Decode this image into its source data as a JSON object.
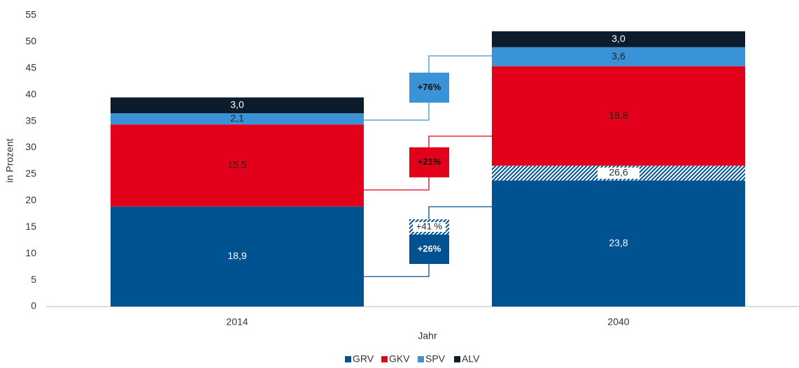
{
  "chart_data": {
    "type": "stacked_bar",
    "y_label": "in Prozent",
    "x_label": "Jahr",
    "categories": [
      "2014",
      "2040"
    ],
    "ylim": [
      0,
      55
    ],
    "yticks": [
      0,
      5,
      10,
      15,
      20,
      25,
      30,
      35,
      40,
      45,
      50,
      55
    ],
    "series": [
      {
        "name": "GRV",
        "color": "#005291",
        "label_color": "#ffffff",
        "values": [
          18.9,
          23.8
        ],
        "value_labels": [
          "18,9",
          "23,8"
        ]
      },
      {
        "pattern": "hatched",
        "color": "#005291",
        "values": [
          null,
          2.8
        ],
        "label": {
          "text": "26,6",
          "value": 26.6
        }
      },
      {
        "name": "GKV",
        "color": "#e2001a",
        "label_color": "#222222",
        "values": [
          15.5,
          18.8
        ],
        "value_labels": [
          "15,5",
          "18,8"
        ]
      },
      {
        "name": "SPV",
        "color": "#3a93d6",
        "label_color": "#222222",
        "values": [
          2.1,
          3.6
        ],
        "value_labels": [
          "2,1",
          "3,6"
        ]
      },
      {
        "name": "ALV",
        "color": "#0c1c2c",
        "label_color": "#ffffff",
        "values": [
          3.0,
          3.0
        ],
        "value_labels": [
          "3,0",
          "3,0"
        ]
      }
    ],
    "changes": [
      {
        "text": "+76%",
        "color": "#3a93d6",
        "text_color": "#111111"
      },
      {
        "text": "+21%",
        "color": "#e2001a",
        "text_color": "#111111"
      },
      {
        "text": "+26%",
        "color": "#005291",
        "text_color": "#ffffff"
      },
      {
        "text": "+41 %",
        "pattern": "hatched",
        "color": "#005291"
      }
    ]
  }
}
